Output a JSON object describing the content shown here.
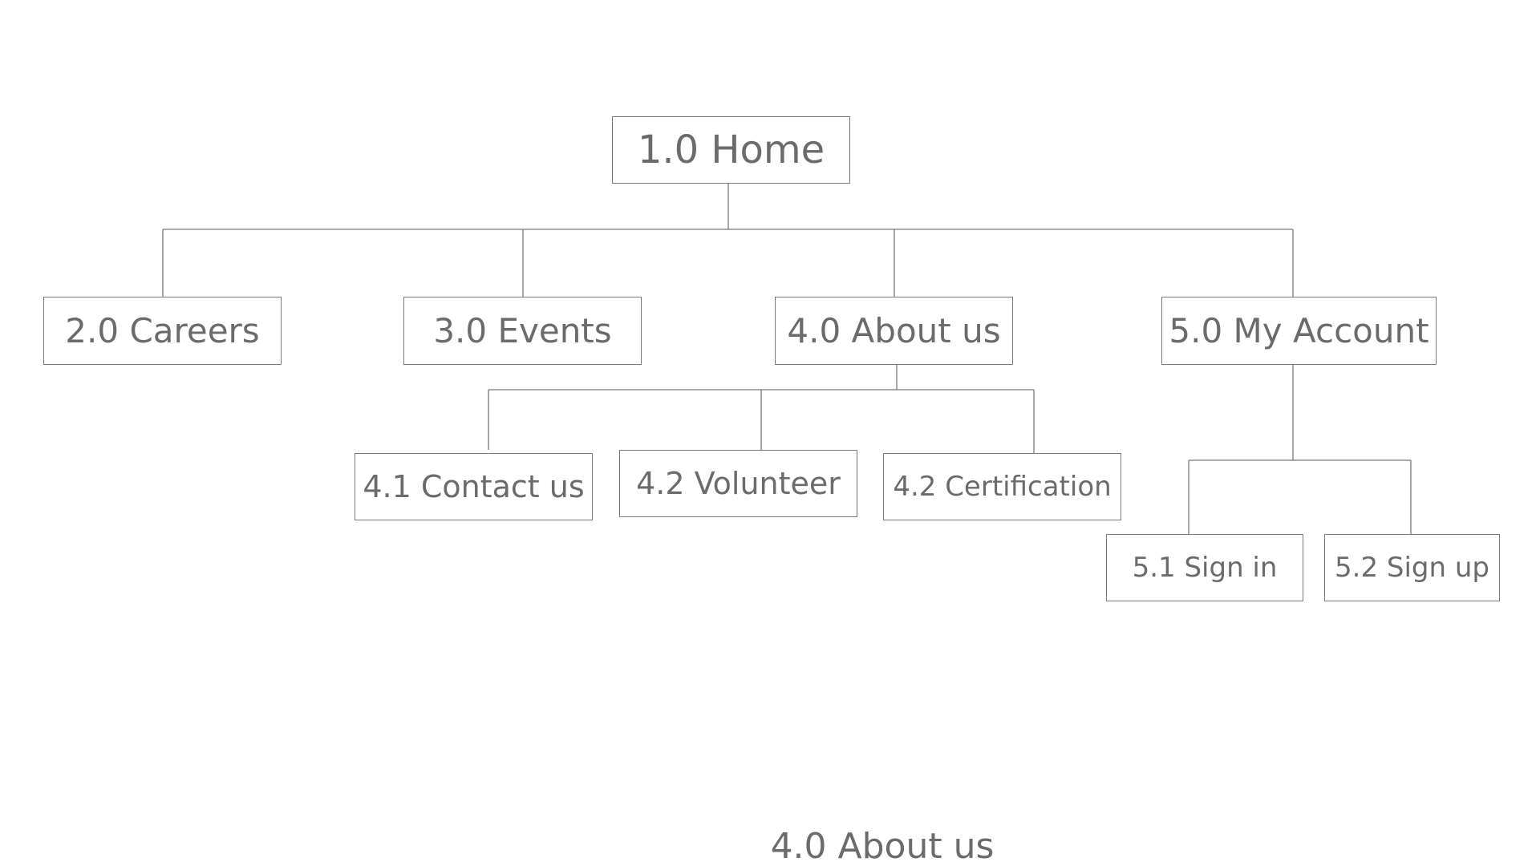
{
  "diagram": {
    "nodes": {
      "home": "1.0 Home",
      "careers": "2.0 Careers",
      "events": "3.0 Events",
      "about": "4.0 About us",
      "account": "5.0 My Account",
      "contact": "4.1 Contact us",
      "volunteer": "4.2 Volunteer",
      "certification": "4.2 Certification",
      "sign_in": "5.1 Sign in",
      "sign_up": "5.2 Sign up"
    },
    "caption": "4.0 About us",
    "colors": {
      "line": "#7a7a7a",
      "text": "#6b6b6b",
      "background": "#ffffff"
    }
  }
}
